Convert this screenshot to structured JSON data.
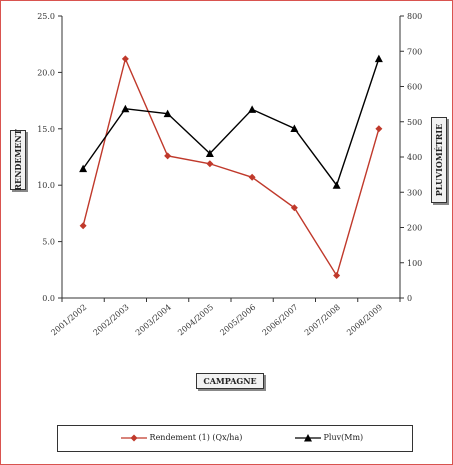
{
  "chart_data": {
    "type": "line",
    "categories": [
      "2001/2002",
      "2002/2003",
      "2003/2004",
      "2004/2005",
      "2005/2006",
      "2006/2007",
      "2007/2008",
      "2008/2009"
    ],
    "series": [
      {
        "name": "Rendement (1) (Qx/ha)",
        "axis": "left",
        "color": "#c0392b",
        "marker": "diamond",
        "values": [
          6.4,
          21.2,
          12.6,
          11.9,
          10.7,
          8.0,
          2.0,
          15.0
        ]
      },
      {
        "name": "Pluv(Mm)",
        "axis": "right",
        "color": "#000000",
        "marker": "triangle",
        "values": [
          367,
          537,
          523,
          410,
          535,
          481,
          320,
          679
        ]
      }
    ],
    "xlabel": "CAMPAGNE",
    "ylabel": "RENDEMENT",
    "y2label": "PLUVIOMÉTRIE",
    "ylim": [
      0,
      25
    ],
    "y2lim": [
      0,
      800
    ],
    "yticks": [
      "0.0",
      "5.0",
      "10.0",
      "15.0",
      "20.0",
      "25.0"
    ],
    "y2ticks": [
      "0",
      "100",
      "200",
      "300",
      "400",
      "500",
      "600",
      "700",
      "800"
    ],
    "grid": false,
    "legend_position": "bottom"
  }
}
